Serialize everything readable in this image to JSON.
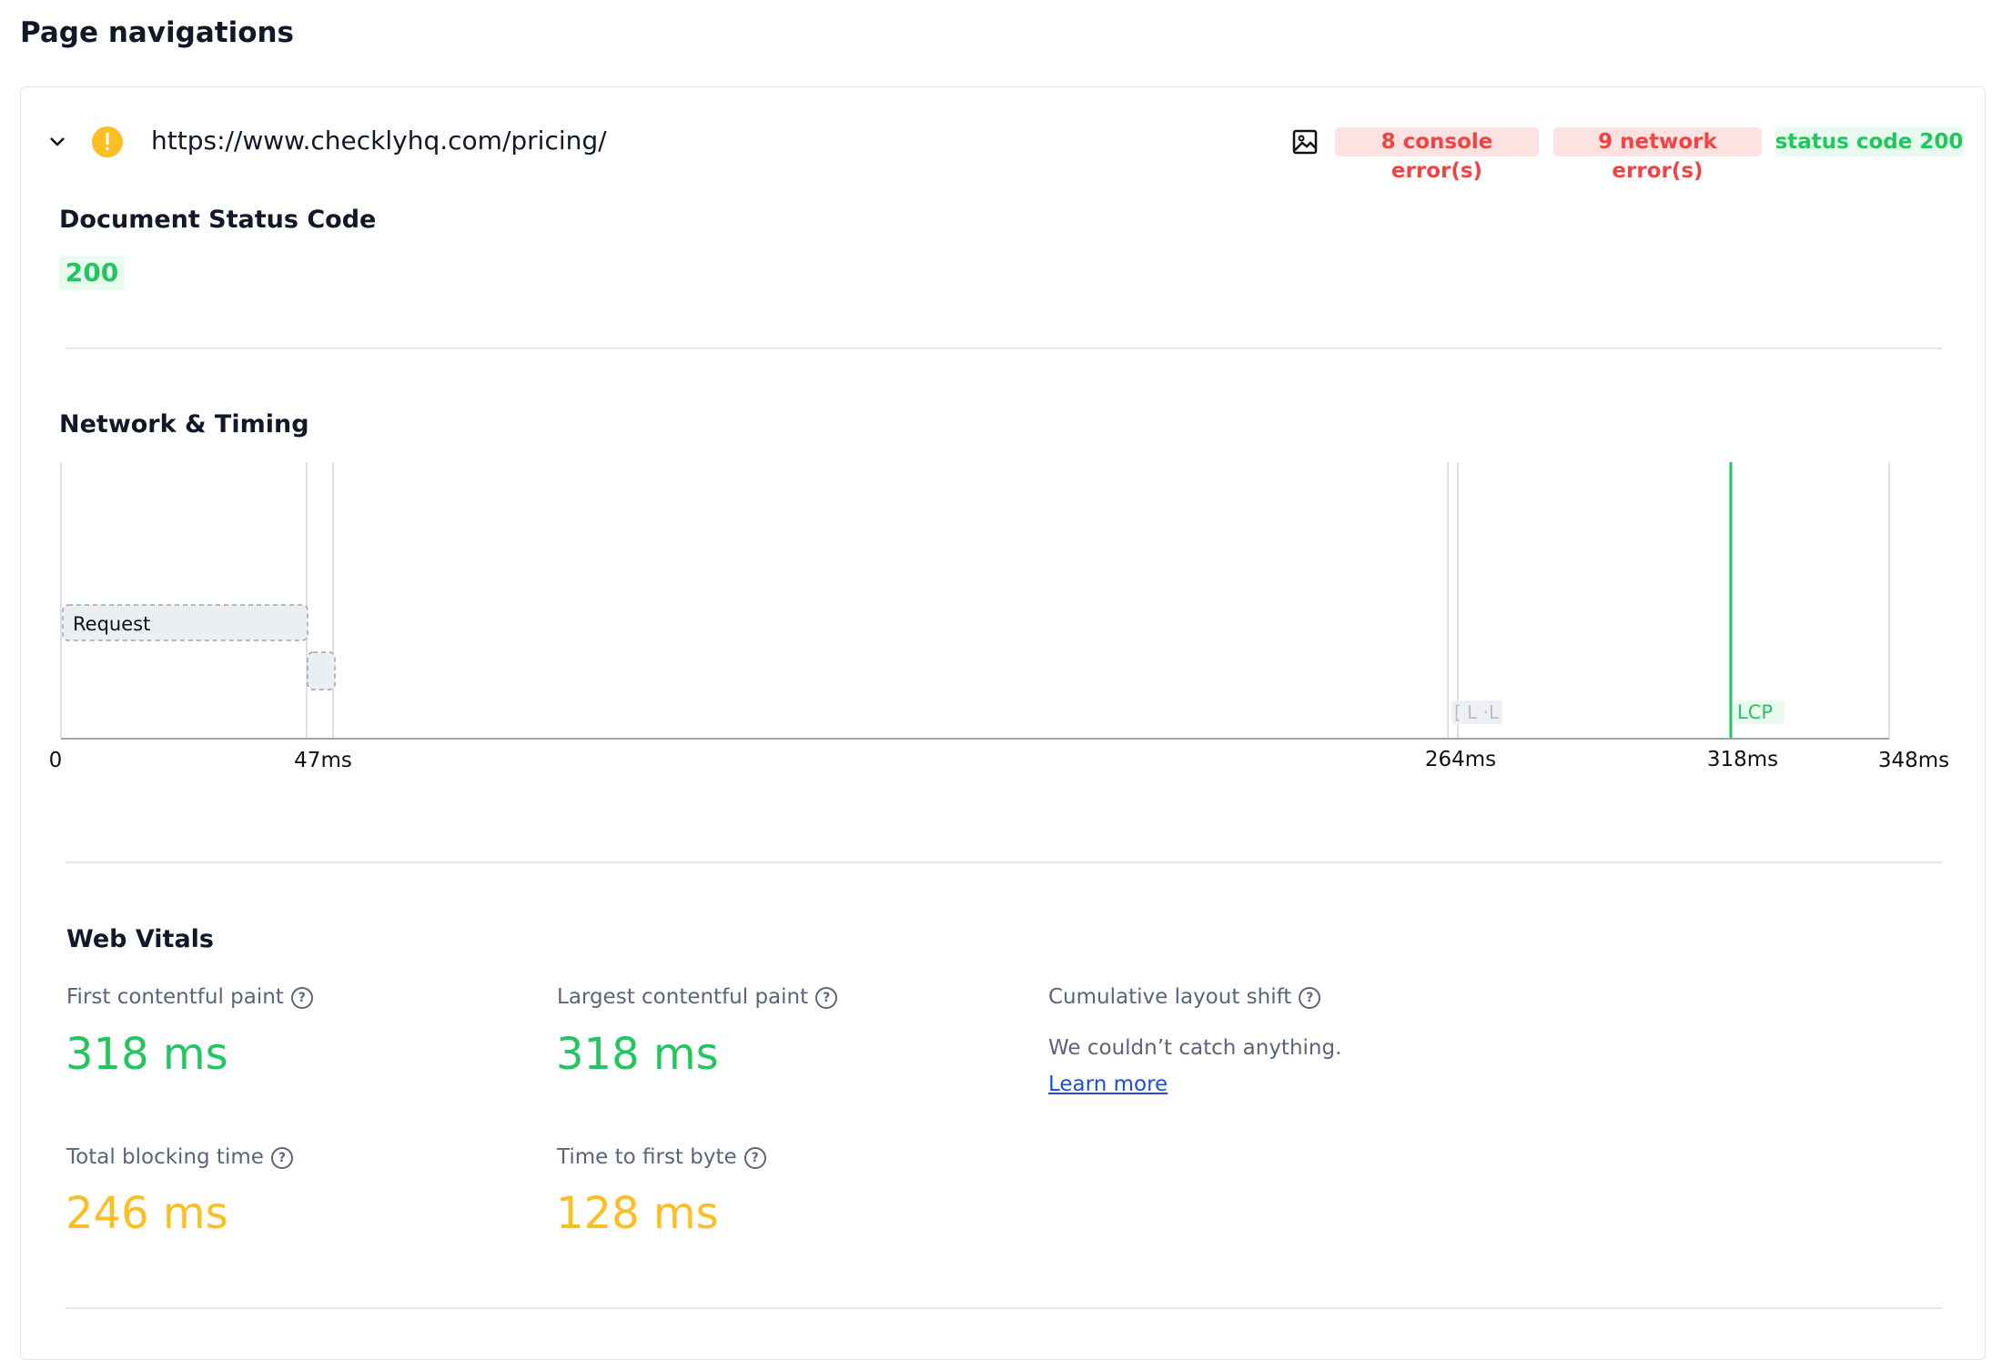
{
  "header": {
    "title": "Page navigations"
  },
  "navigation": {
    "url": "https://www.checklyhq.com/pricing/",
    "badges": [
      "8 console error(s)",
      "9 network error(s)",
      "status code 200"
    ]
  },
  "status": {
    "title": "Document Status Code",
    "code": "200"
  },
  "timing": {
    "title": "Network & Timing",
    "request_label": "Request",
    "marker_labels": [
      "[ L ·L",
      "LCP"
    ],
    "ticks": [
      "0",
      "47ms",
      "264ms",
      "318ms",
      "348ms"
    ]
  },
  "vitals": {
    "title": "Web Vitals",
    "items": [
      {
        "label": "First contentful paint",
        "value": "318 ms"
      },
      {
        "label": "Largest contentful paint",
        "value": "318 ms"
      },
      {
        "label": "Cumulative layout shift",
        "message": "We couldn’t catch anything.",
        "link": "Learn more"
      },
      {
        "label": "Total blocking time",
        "value": "246 ms"
      },
      {
        "label": "Time to first byte",
        "value": "128 ms"
      }
    ]
  }
}
